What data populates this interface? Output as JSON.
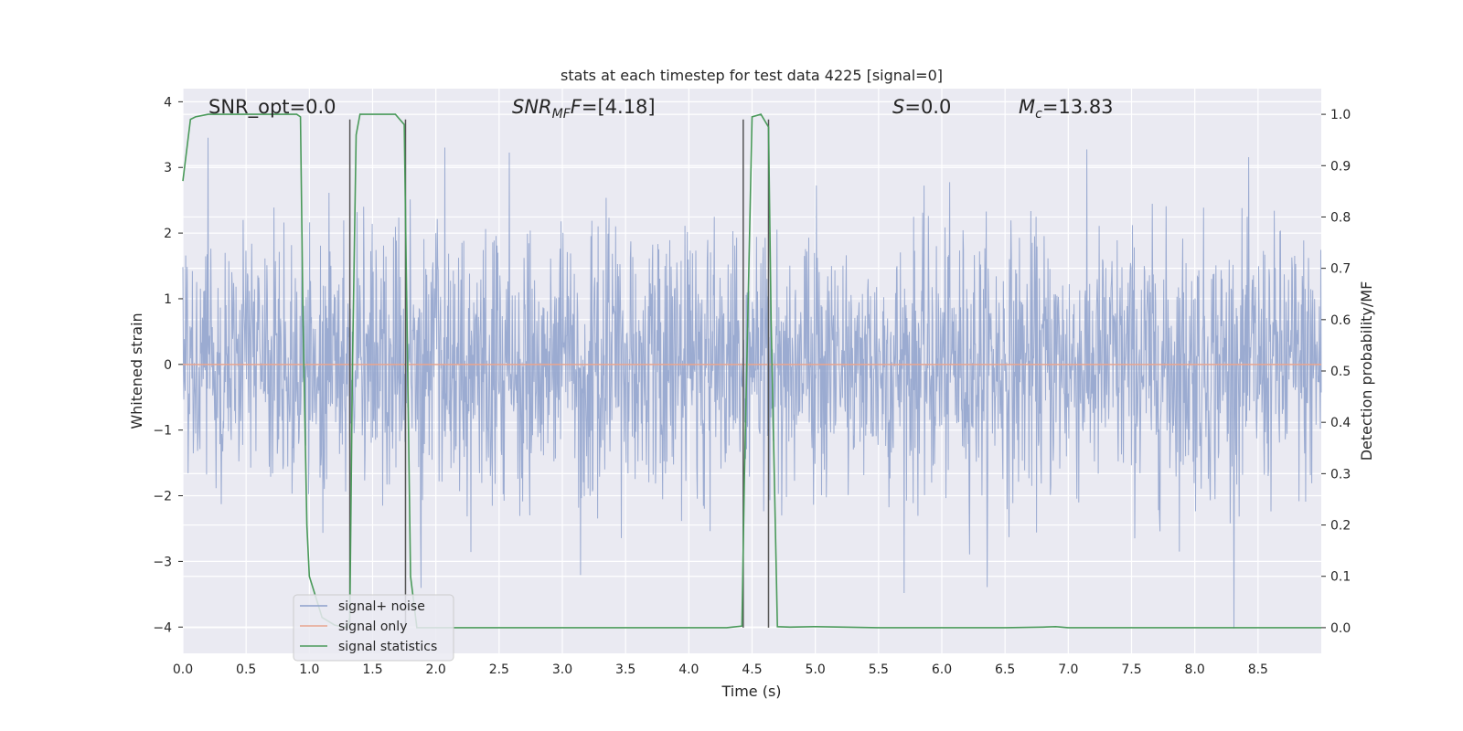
{
  "chart_data": {
    "type": "line",
    "title": "stats at each timestep for test data 4225 [signal=0]",
    "xlabel": "Time (s)",
    "ylabel": "Whitened strain",
    "y2label": "Detection probability/MF",
    "xlim": [
      0.0,
      9.0
    ],
    "ylim": [
      -4.4,
      4.2
    ],
    "y2lim": [
      -0.05,
      1.05
    ],
    "x_ticks": [
      "0.0",
      "0.5",
      "1.0",
      "1.5",
      "2.0",
      "2.5",
      "3.0",
      "3.5",
      "4.0",
      "4.5",
      "5.0",
      "5.5",
      "6.0",
      "6.5",
      "7.0",
      "7.5",
      "8.0",
      "8.5"
    ],
    "y_ticks": [
      "4",
      "3",
      "2",
      "1",
      "0",
      "−1",
      "−2",
      "−3",
      "−4"
    ],
    "y2_ticks": [
      "1.0",
      "0.9",
      "0.8",
      "0.7",
      "0.6",
      "0.5",
      "0.4",
      "0.3",
      "0.2",
      "0.1",
      "0.0"
    ],
    "grid": true,
    "legend_location": "lower-left",
    "annotations": {
      "snr_opt": "SNR_opt=0.0",
      "snr_mf_main": "SNR",
      "snr_mf_sub": "MF",
      "snr_mf_value": "=[4.18]",
      "s_main": "S",
      "s_value": "=0.0",
      "mc_main": "M",
      "mc_sub": "c",
      "mc_value": "=13.83"
    },
    "series": [
      {
        "name": "signal+ noise",
        "color": "#8da0cb",
        "kind": "noise",
        "mean": 0.0,
        "std": 1.0,
        "x_start": 0.0,
        "x_end": 9.0
      },
      {
        "name": "signal only",
        "color": "#e8a58f",
        "kind": "constant",
        "value": 0.0
      },
      {
        "name": "signal statistics",
        "color": "#4a9a5a",
        "axis": "right",
        "x": [
          0.0,
          0.06,
          0.1,
          0.2,
          0.3,
          0.5,
          0.7,
          0.8,
          0.9,
          0.93,
          0.95,
          0.98,
          1.0,
          1.05,
          1.1,
          1.2,
          1.3,
          1.32,
          1.34,
          1.37,
          1.4,
          1.5,
          1.6,
          1.68,
          1.75,
          1.76,
          1.8,
          1.85,
          2.0,
          2.5,
          3.0,
          3.5,
          4.0,
          4.3,
          4.42,
          4.44,
          4.5,
          4.57,
          4.63,
          4.65,
          4.7,
          4.8,
          5.0,
          5.5,
          6.0,
          6.5,
          6.8,
          6.9,
          7.0,
          7.5,
          8.0,
          8.5,
          9.0
        ],
        "y": [
          0.87,
          0.99,
          0.995,
          1.0,
          1.0,
          1.0,
          1.0,
          1.0,
          1.0,
          0.995,
          0.6,
          0.2,
          0.1,
          0.06,
          0.02,
          0.005,
          0.0,
          0.02,
          0.5,
          0.96,
          1.0,
          1.0,
          1.0,
          1.0,
          0.98,
          0.8,
          0.1,
          0.0,
          0.0,
          0.0,
          0.0,
          0.0,
          0.0,
          0.0,
          0.003,
          0.3,
          0.995,
          1.0,
          0.975,
          0.6,
          0.002,
          0.001,
          0.002,
          0.0,
          0.0,
          0.0,
          0.001,
          0.002,
          0.0,
          0.0,
          0.0,
          0.0,
          0.0
        ]
      }
    ],
    "vertical_markers": [
      {
        "x": 1.32,
        "y_top": 0.99,
        "y_bottom": 0.0
      },
      {
        "x": 1.76,
        "y_top": 0.99,
        "y_bottom": 0.0
      },
      {
        "x": 4.43,
        "y_top": 0.99,
        "y_bottom": 0.0
      },
      {
        "x": 4.63,
        "y_top": 0.99,
        "y_bottom": 0.0
      }
    ],
    "marker_color": "#555555",
    "face_color": "#eaeaf2",
    "grid_color": "#ffffff"
  }
}
